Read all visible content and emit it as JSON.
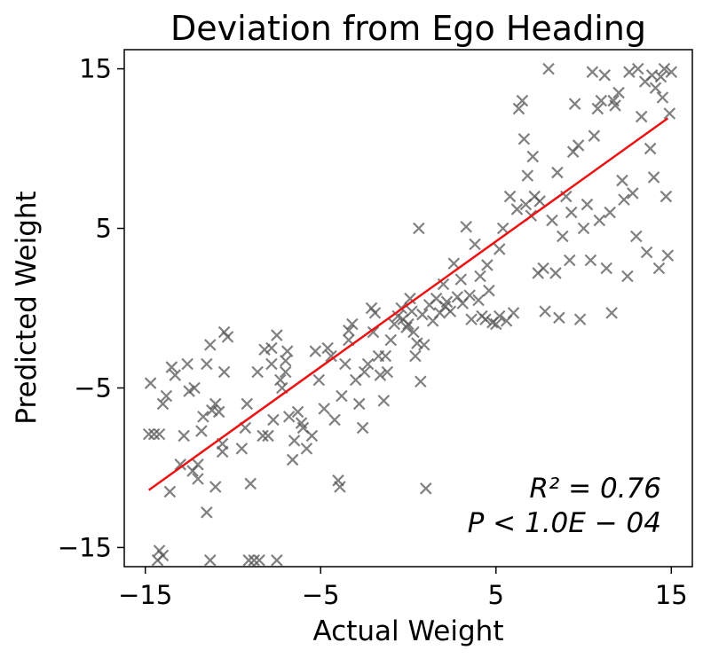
{
  "chart_data": {
    "type": "scatter",
    "title": "Deviation from Ego Heading",
    "xlabel": "Actual Weight",
    "ylabel": "Predicted Weight",
    "xlim": [
      -16.2,
      16.2
    ],
    "ylim": [
      -16.2,
      16.2
    ],
    "xticks": [
      -15,
      -5,
      5,
      15
    ],
    "yticks": [
      -15,
      -5,
      5,
      15
    ],
    "xtick_labels": [
      "−15",
      "−5",
      "5",
      "15"
    ],
    "ytick_labels": [
      "−15",
      "−5",
      "5",
      "15"
    ],
    "marker_color": "#555555",
    "line_color": "#ee1111",
    "fit_line": {
      "x": [
        -14.8,
        14.8
      ],
      "y": [
        -11.4,
        11.9
      ]
    },
    "annotations": {
      "r2": "R² = 0.76",
      "p": "P < 1.0E − 04"
    },
    "points": [
      [
        -14.8,
        -7.9
      ],
      [
        -14.5,
        -7.9
      ],
      [
        -14.2,
        -7.9
      ],
      [
        -14.7,
        -4.7
      ],
      [
        -14.0,
        -6.0
      ],
      [
        -13.8,
        -5.5
      ],
      [
        -13.5,
        -3.7
      ],
      [
        -13.3,
        -4.2
      ],
      [
        -13.6,
        -11.5
      ],
      [
        -14.2,
        -15.2
      ],
      [
        -14.0,
        -15.5
      ],
      [
        -14.3,
        -15.8
      ],
      [
        -12.6,
        -3.5
      ],
      [
        -12.5,
        -5.2
      ],
      [
        -12.2,
        -5.0
      ],
      [
        -12.0,
        -9.8
      ],
      [
        -12.3,
        -10.2
      ],
      [
        -12.0,
        -10.7
      ],
      [
        -11.8,
        -7.7
      ],
      [
        -11.7,
        -6.8
      ],
      [
        -11.5,
        -3.5
      ],
      [
        -11.3,
        -2.3
      ],
      [
        -11.2,
        -6.4
      ],
      [
        -11.0,
        -6.0
      ],
      [
        -10.8,
        -6.5
      ],
      [
        -11.5,
        -12.8
      ],
      [
        -11.3,
        -15.8
      ],
      [
        -11.0,
        -11.2
      ],
      [
        -10.6,
        -8.5
      ],
      [
        -10.5,
        -4.0
      ],
      [
        -10.3,
        -1.8
      ],
      [
        -10.6,
        -9.0
      ],
      [
        -9.5,
        -8.8
      ],
      [
        -9.3,
        -7.5
      ],
      [
        -9.2,
        -6.0
      ],
      [
        -9.0,
        -11.0
      ],
      [
        -9.1,
        -15.8
      ],
      [
        -8.8,
        -15.8
      ],
      [
        -8.5,
        -15.8
      ],
      [
        -8.3,
        -8.0
      ],
      [
        -8.0,
        -8.0
      ],
      [
        -7.8,
        -3.5
      ],
      [
        -7.7,
        -7.0
      ],
      [
        -7.5,
        -15.8
      ],
      [
        -7.3,
        -4.5
      ],
      [
        -7.2,
        -5.0
      ],
      [
        -7.0,
        -3.3
      ],
      [
        -6.9,
        -2.7
      ],
      [
        -7.0,
        -4.0
      ],
      [
        -6.8,
        -6.8
      ],
      [
        -6.6,
        -9.5
      ],
      [
        -6.5,
        -8.3
      ],
      [
        -7.8,
        -2.5
      ],
      [
        -7.5,
        -1.7
      ],
      [
        -6.3,
        -6.5
      ],
      [
        -6.0,
        -7.5
      ],
      [
        -5.8,
        -8.8
      ],
      [
        -5.5,
        -8.0
      ],
      [
        -5.3,
        -2.7
      ],
      [
        -5.1,
        -4.5
      ],
      [
        -4.8,
        -6.3
      ],
      [
        -4.6,
        -2.5
      ],
      [
        -4.4,
        -3.0
      ],
      [
        -4.2,
        -7.0
      ],
      [
        -4.0,
        -10.8
      ],
      [
        -3.9,
        -11.2
      ],
      [
        -3.8,
        -5.5
      ],
      [
        -3.6,
        -3.5
      ],
      [
        -3.4,
        -2.0
      ],
      [
        -3.2,
        -1.0
      ],
      [
        -3.0,
        -4.5
      ],
      [
        -2.8,
        -6.0
      ],
      [
        -2.6,
        -7.5
      ],
      [
        -2.5,
        -4.0
      ],
      [
        -2.3,
        -3.5
      ],
      [
        -2.0,
        -1.5
      ],
      [
        -1.9,
        -0.3
      ],
      [
        -1.7,
        -3.0
      ],
      [
        -1.6,
        -4.2
      ],
      [
        -1.4,
        -5.8
      ],
      [
        -1.3,
        -3.0
      ],
      [
        -1.2,
        -4.0
      ],
      [
        -1.0,
        -2.0
      ],
      [
        -0.8,
        -1.0
      ],
      [
        -0.6,
        -0.5
      ],
      [
        -0.4,
        0.0
      ],
      [
        -0.3,
        -0.7
      ],
      [
        -0.1,
        -1.2
      ],
      [
        0.0,
        -1.0
      ],
      [
        0.1,
        0.6
      ],
      [
        0.2,
        -0.2
      ],
      [
        0.3,
        -1.5
      ],
      [
        0.5,
        -2.2
      ],
      [
        0.6,
        5.0
      ],
      [
        0.8,
        -0.4
      ],
      [
        0.9,
        -2.3
      ],
      [
        1.0,
        -11.3
      ],
      [
        0.7,
        -4.6
      ],
      [
        1.2,
        0.2
      ],
      [
        1.4,
        -0.8
      ],
      [
        1.6,
        0.6
      ],
      [
        1.8,
        -0.3
      ],
      [
        2.0,
        1.5
      ],
      [
        2.2,
        0.4
      ],
      [
        2.4,
        -0.2
      ],
      [
        2.6,
        2.8
      ],
      [
        2.8,
        0.7
      ],
      [
        3.0,
        1.8
      ],
      [
        3.1,
        0.3
      ],
      [
        3.3,
        5.1
      ],
      [
        3.5,
        0.8
      ],
      [
        3.6,
        -0.7
      ],
      [
        3.8,
        4.0
      ],
      [
        4.0,
        0.5
      ],
      [
        4.2,
        -0.5
      ],
      [
        4.4,
        -0.7
      ],
      [
        4.5,
        2.7
      ],
      [
        4.6,
        1.1
      ],
      [
        4.8,
        -0.9
      ],
      [
        5.0,
        -1.0
      ],
      [
        5.2,
        -0.5
      ],
      [
        5.4,
        5.0
      ],
      [
        5.6,
        -0.8
      ],
      [
        5.8,
        7.0
      ],
      [
        6.0,
        -0.3
      ],
      [
        6.2,
        6.2
      ],
      [
        6.3,
        12.5
      ],
      [
        6.5,
        13.0
      ],
      [
        6.7,
        6.5
      ],
      [
        6.8,
        8.3
      ],
      [
        7.0,
        5.8
      ],
      [
        7.2,
        7.0
      ],
      [
        7.4,
        2.2
      ],
      [
        7.5,
        6.7
      ],
      [
        7.7,
        2.5
      ],
      [
        7.8,
        -0.2
      ],
      [
        8.0,
        15.0
      ],
      [
        8.2,
        5.5
      ],
      [
        8.4,
        2.2
      ],
      [
        8.5,
        8.5
      ],
      [
        8.6,
        -0.6
      ],
      [
        8.8,
        4.5
      ],
      [
        9.0,
        7.0
      ],
      [
        9.2,
        3.0
      ],
      [
        9.3,
        6.0
      ],
      [
        9.5,
        12.8
      ],
      [
        9.7,
        10.2
      ],
      [
        9.8,
        -0.7
      ],
      [
        10.0,
        5.0
      ],
      [
        10.2,
        6.5
      ],
      [
        10.4,
        3.0
      ],
      [
        10.5,
        14.8
      ],
      [
        10.6,
        10.8
      ],
      [
        10.8,
        12.5
      ],
      [
        11.0,
        13.0
      ],
      [
        11.2,
        14.6
      ],
      [
        11.3,
        2.5
      ],
      [
        11.5,
        6.0
      ],
      [
        11.6,
        -0.3
      ],
      [
        11.8,
        12.7
      ],
      [
        12.0,
        13.5
      ],
      [
        12.2,
        8.0
      ],
      [
        12.3,
        6.8
      ],
      [
        12.5,
        2.0
      ],
      [
        12.6,
        14.8
      ],
      [
        12.8,
        7.2
      ],
      [
        13.0,
        4.5
      ],
      [
        13.1,
        15.0
      ],
      [
        13.3,
        12.0
      ],
      [
        13.5,
        14.2
      ],
      [
        13.6,
        3.5
      ],
      [
        13.8,
        10.0
      ],
      [
        14.0,
        8.2
      ],
      [
        14.1,
        13.8
      ],
      [
        14.3,
        2.5
      ],
      [
        14.4,
        14.5
      ],
      [
        14.5,
        13.2
      ],
      [
        14.6,
        15.0
      ],
      [
        14.7,
        7.0
      ],
      [
        14.8,
        3.3
      ],
      [
        14.9,
        12.2
      ],
      [
        15.0,
        14.8
      ],
      [
        -10.5,
        -1.5
      ],
      [
        -12.8,
        -8.0
      ],
      [
        -13.0,
        -9.8
      ],
      [
        -8.6,
        -4.0
      ],
      [
        -8.2,
        -2.6
      ],
      [
        -6.1,
        -7.2
      ],
      [
        -3.4,
        -1.4
      ],
      [
        -2.1,
        0.0
      ],
      [
        0.4,
        -3.0
      ],
      [
        2.1,
        0.1
      ],
      [
        4.1,
        2.0
      ],
      [
        5.2,
        3.7
      ],
      [
        6.6,
        10.6
      ],
      [
        7.1,
        9.5
      ],
      [
        9.4,
        9.8
      ],
      [
        10.9,
        5.5
      ],
      [
        11.7,
        13.0
      ],
      [
        13.9,
        14.6
      ]
    ]
  }
}
